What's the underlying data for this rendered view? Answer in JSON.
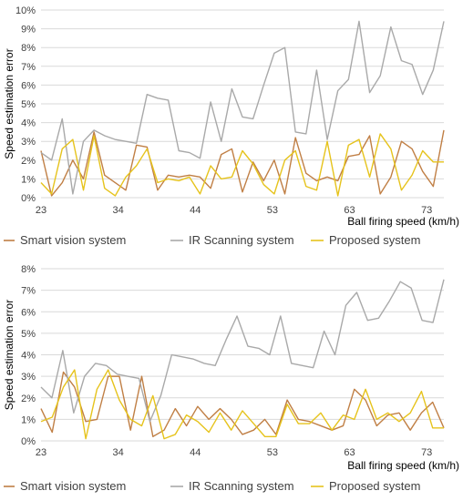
{
  "colors": {
    "smart": "#C07F45",
    "ir": "#A9A9A9",
    "proposed": "#E6C31C",
    "grid": "#D9D9D9",
    "text": "#404040",
    "axis_text": "#000000"
  },
  "chart_data": [
    {
      "type": "line",
      "ylabel": "Speed estimation error",
      "xlabel": "Ball firing speed (km/h)",
      "y_ticks": [
        "0%",
        "1%",
        "2%",
        "3%",
        "4%",
        "5%",
        "6%",
        "7%",
        "8%",
        "9%",
        "10%"
      ],
      "x_ticks": [
        "23",
        "34",
        "44",
        "53",
        "63",
        "73"
      ],
      "ylim": [
        0,
        10
      ],
      "xlim": [
        0,
        47
      ],
      "x_tick_positions": [
        0,
        9,
        18,
        27,
        36,
        45
      ],
      "grid": true,
      "legend_position": "bottom",
      "series": [
        {
          "name": "Smart vision system",
          "values": [
            2.5,
            0.1,
            0.8,
            2.0,
            1.0,
            3.5,
            1.2,
            0.8,
            0.4,
            2.8,
            2.7,
            0.4,
            1.2,
            1.1,
            1.2,
            1.1,
            0.5,
            2.3,
            2.6,
            0.3,
            1.9,
            0.9,
            2.0,
            0.2,
            3.2,
            1.3,
            0.9,
            1.1,
            0.9,
            2.2,
            2.3,
            3.3,
            0.2,
            1.1,
            3.0,
            2.6,
            1.4,
            0.6,
            3.6
          ]
        },
        {
          "name": "IR Scanning system",
          "values": [
            2.4,
            2.0,
            4.2,
            0.2,
            3.0,
            3.6,
            3.3,
            3.1,
            3.0,
            2.9,
            5.5,
            5.3,
            5.2,
            2.5,
            2.4,
            2.1,
            5.1,
            3.0,
            5.8,
            4.3,
            4.2,
            6.0,
            7.7,
            8.0,
            3.5,
            3.4,
            6.8,
            3.1,
            5.7,
            6.3,
            9.4,
            5.6,
            6.5,
            9.1,
            7.3,
            7.1,
            5.5,
            6.8,
            9.4
          ]
        },
        {
          "name": "Proposed system",
          "values": [
            0.8,
            0.2,
            2.6,
            3.1,
            0.4,
            3.3,
            0.5,
            0.1,
            1.1,
            1.7,
            2.6,
            0.8,
            1.0,
            0.9,
            1.1,
            0.2,
            1.7,
            1.0,
            1.1,
            2.5,
            1.8,
            0.7,
            0.2,
            2.0,
            2.5,
            0.6,
            0.4,
            3.0,
            0.1,
            2.8,
            3.1,
            1.1,
            3.4,
            2.6,
            0.4,
            1.2,
            2.5,
            1.9,
            1.9
          ]
        }
      ]
    },
    {
      "type": "line",
      "ylabel": "Speed estimation error",
      "xlabel": "Ball firing speed (km/h)",
      "y_ticks": [
        "0%",
        "1%",
        "2%",
        "3%",
        "4%",
        "5%",
        "6%",
        "7%",
        "8%"
      ],
      "x_ticks": [
        "23",
        "34",
        "44",
        "53",
        "63",
        "73"
      ],
      "ylim": [
        0,
        8
      ],
      "xlim": [
        0,
        47
      ],
      "x_tick_positions": [
        0,
        9,
        18,
        27,
        36,
        45
      ],
      "grid": true,
      "legend_position": "bottom",
      "series": [
        {
          "name": "Smart vision system",
          "values": [
            1.5,
            0.4,
            3.2,
            2.5,
            0.9,
            1.0,
            3.0,
            3.0,
            0.5,
            3.0,
            0.2,
            0.5,
            1.5,
            0.7,
            1.6,
            1.0,
            1.5,
            1.0,
            0.3,
            0.5,
            1.0,
            0.3,
            1.9,
            1.0,
            0.9,
            0.7,
            0.5,
            0.7,
            2.4,
            1.9,
            0.7,
            1.2,
            1.3,
            0.5,
            1.3,
            1.8,
            0.6
          ]
        },
        {
          "name": "IR Scanning system",
          "values": [
            2.5,
            2.0,
            4.2,
            1.3,
            3.0,
            3.6,
            3.5,
            3.1,
            3.0,
            2.9,
            0.9,
            2.1,
            4.0,
            3.9,
            3.8,
            3.6,
            3.5,
            4.7,
            5.8,
            4.4,
            4.3,
            4.0,
            5.8,
            3.6,
            3.5,
            3.4,
            5.1,
            4.0,
            6.3,
            6.9,
            5.6,
            5.7,
            6.5,
            7.4,
            7.1,
            5.6,
            5.5,
            7.5
          ]
        },
        {
          "name": "Proposed system",
          "values": [
            0.9,
            1.1,
            2.5,
            3.3,
            0.1,
            2.4,
            3.3,
            1.9,
            1.0,
            0.7,
            2.1,
            0.1,
            0.3,
            1.2,
            0.9,
            0.4,
            1.3,
            0.5,
            1.4,
            0.8,
            0.2,
            0.2,
            1.7,
            0.8,
            0.8,
            1.3,
            0.5,
            1.2,
            1.0,
            2.4,
            1.0,
            1.3,
            0.9,
            1.3,
            2.3,
            0.6,
            0.6
          ]
        }
      ]
    }
  ]
}
